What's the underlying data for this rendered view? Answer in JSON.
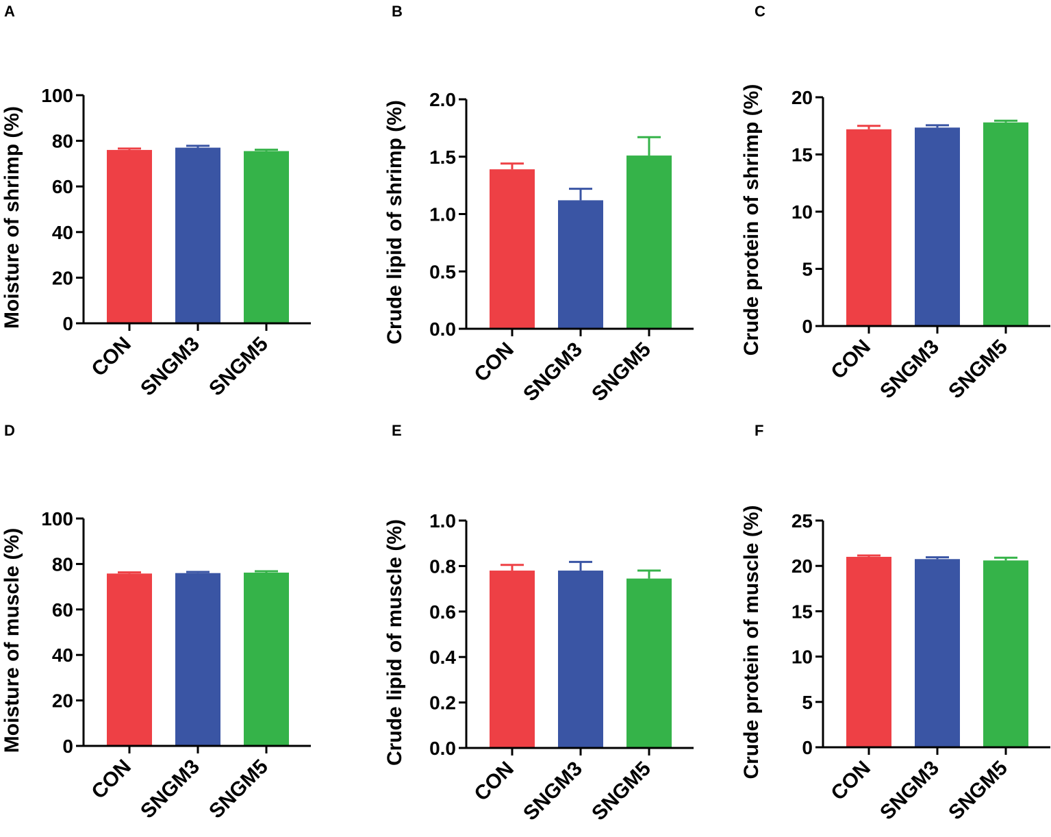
{
  "figure": {
    "bar_colors": [
      "#ee4045",
      "#3a55a4",
      "#35b349"
    ],
    "axis_color": "#000000"
  },
  "chart_data": [
    {
      "panel": "A",
      "type": "bar",
      "categories": [
        "CON",
        "SNGM3",
        "SNGM5"
      ],
      "values": [
        76.0,
        77.0,
        75.5
      ],
      "errors": [
        0.6,
        0.8,
        0.6
      ],
      "ylabel": "Moisture of shrimp (%)",
      "ylim": [
        0,
        100
      ],
      "yticks": [
        0,
        20,
        40,
        60,
        80,
        100
      ],
      "ytick_labels": [
        "0",
        "20",
        "40",
        "60",
        "80",
        "100"
      ]
    },
    {
      "panel": "B",
      "type": "bar",
      "categories": [
        "CON",
        "SNGM3",
        "SNGM5"
      ],
      "values": [
        1.39,
        1.12,
        1.51
      ],
      "errors": [
        0.05,
        0.1,
        0.16
      ],
      "ylabel": "Crude lipid of shrimp (%)",
      "ylim": [
        0,
        2.0
      ],
      "yticks": [
        0,
        0.5,
        1.0,
        1.5,
        2.0
      ],
      "ytick_labels": [
        "0.0",
        "0.5",
        "1.0",
        "1.5",
        "2.0"
      ]
    },
    {
      "panel": "C",
      "type": "bar",
      "categories": [
        "CON",
        "SNGM3",
        "SNGM5"
      ],
      "values": [
        17.2,
        17.35,
        17.8
      ],
      "errors": [
        0.3,
        0.2,
        0.15
      ],
      "ylabel": "Crude protein of shrimp (%)",
      "ylim": [
        0,
        20
      ],
      "yticks": [
        0,
        5,
        10,
        15,
        20
      ],
      "ytick_labels": [
        "0",
        "5",
        "10",
        "15",
        "20"
      ]
    },
    {
      "panel": "D",
      "type": "bar",
      "categories": [
        "CON",
        "SNGM3",
        "SNGM5"
      ],
      "values": [
        75.8,
        76.0,
        76.2
      ],
      "errors": [
        0.5,
        0.5,
        0.6
      ],
      "ylabel": "Moisture of muscle (%)",
      "ylim": [
        0,
        100
      ],
      "yticks": [
        0,
        20,
        40,
        60,
        80,
        100
      ],
      "ytick_labels": [
        "0",
        "20",
        "40",
        "60",
        "80",
        "100"
      ]
    },
    {
      "panel": "E",
      "type": "bar",
      "categories": [
        "CON",
        "SNGM3",
        "SNGM5"
      ],
      "values": [
        0.78,
        0.78,
        0.745
      ],
      "errors": [
        0.025,
        0.038,
        0.035
      ],
      "ylabel": "Crude lipid of muscle (%)",
      "ylim": [
        0,
        1.0
      ],
      "yticks": [
        0,
        0.2,
        0.4,
        0.6,
        0.8,
        1.0
      ],
      "ytick_labels": [
        "0.0",
        "0.2",
        "0.4",
        "0.6",
        "0.8",
        "1.0"
      ]
    },
    {
      "panel": "F",
      "type": "bar",
      "categories": [
        "CON",
        "SNGM3",
        "SNGM5"
      ],
      "values": [
        21.0,
        20.75,
        20.6
      ],
      "errors": [
        0.15,
        0.2,
        0.3
      ],
      "ylabel": "Crude protein of muscle (%)",
      "ylim": [
        0,
        25
      ],
      "yticks": [
        0,
        5,
        10,
        15,
        20,
        25
      ],
      "ytick_labels": [
        "0",
        "5",
        "10",
        "15",
        "20",
        "25"
      ]
    }
  ]
}
